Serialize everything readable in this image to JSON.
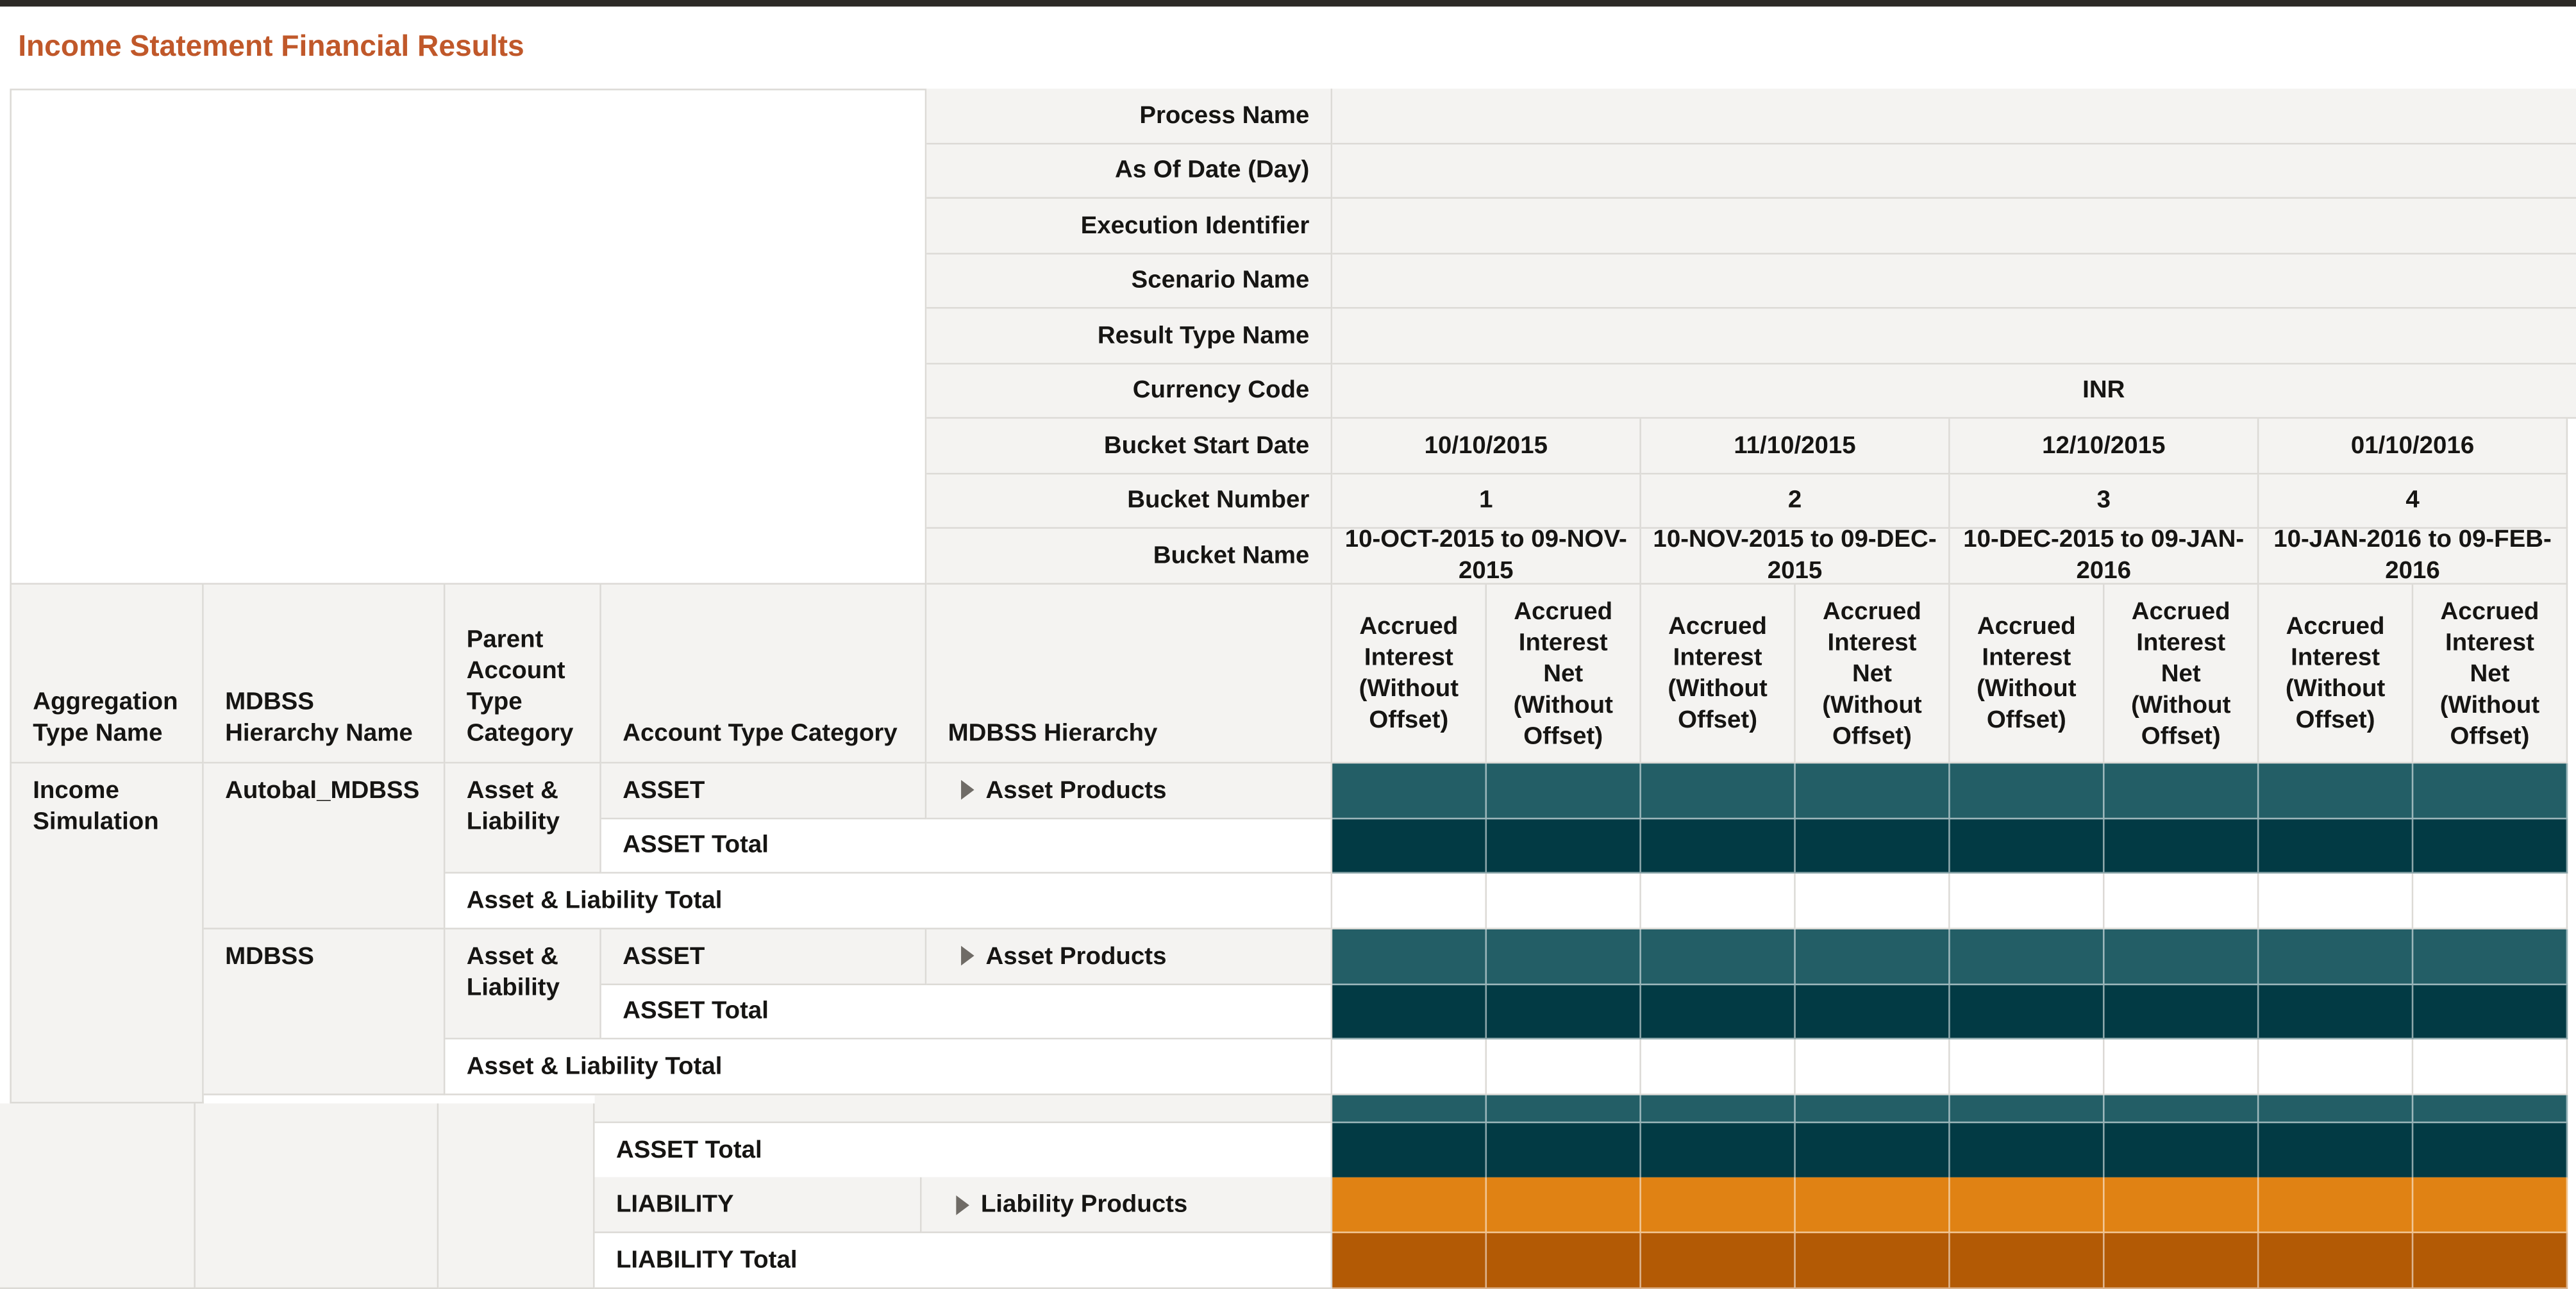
{
  "header": {
    "title": "Income Statement Financial Results"
  },
  "parameters": {
    "labels": [
      "Process Name",
      "As Of Date (Day)",
      "Execution Identifier",
      "Scenario Name",
      "Result Type Name",
      "Currency Code",
      "Bucket Start Date",
      "Bucket Number",
      "Bucket Name"
    ],
    "currency_code": "INR",
    "bucket_start_dates": [
      "10/10/2015",
      "11/10/2015",
      "12/10/2015",
      "01/10/2016"
    ],
    "bucket_numbers": [
      1,
      2,
      3,
      4
    ],
    "bucket_names": [
      "10-OCT-2015 to 09-NOV-2015",
      "10-NOV-2015 to 09-DEC-2015",
      "10-DEC-2015 to 09-JAN-2016",
      "10-JAN-2016 to 09-FEB-2016"
    ]
  },
  "table": {
    "row_headers": [
      "Aggregation Type Name",
      "MDBSS Hierarchy Name",
      "Parent Account Type Category",
      "Account Type Category",
      "MDBSS Hierarchy"
    ],
    "measure_headers": [
      "Accrued Interest (Without Offset)",
      "Accrued Interest Net (Without Offset)",
      "Accrued Interest (Without Offset)",
      "Accrued Interest Net (Without Offset)",
      "Accrued Interest (Without Offset)",
      "Accrued Interest Net (Without Offset)",
      "Accrued Interest (Without Offset)",
      "Accrued Interest Net (Without Offset)"
    ],
    "aggregation_type": "Income Simulation",
    "groups": [
      {
        "hierarchy_name": "Autobal_MDBSS",
        "parent_category": "Asset & Liability",
        "account_category": "ASSET",
        "hierarchy": "Asset Products",
        "account_total": "ASSET Total",
        "parent_total": "Asset & Liability Total"
      },
      {
        "hierarchy_name": "MDBSS",
        "parent_category": "Asset & Liability",
        "account_category": "ASSET",
        "hierarchy": "Asset Products",
        "account_total": "ASSET Total",
        "parent_total": "Asset & Liability Total"
      }
    ],
    "lower": {
      "asset_total": "ASSET Total",
      "liability": "LIABILITY",
      "liability_hierarchy": "Liability Products",
      "liability_total": "LIABILITY Total"
    }
  }
}
